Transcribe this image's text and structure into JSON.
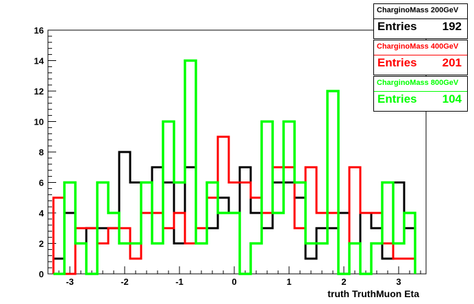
{
  "chart_data": {
    "type": "histogram",
    "title": "",
    "xlabel": "truth TruthMuon Eta",
    "ylabel": "",
    "xlim": [
      -3.4,
      3.5
    ],
    "ylim": [
      0,
      16
    ],
    "bin_edges": [
      -3.3,
      -3.1,
      -2.9,
      -2.7,
      -2.5,
      -2.3,
      -2.1,
      -1.9,
      -1.7,
      -1.5,
      -1.3,
      -1.1,
      -0.9,
      -0.7,
      -0.5,
      -0.3,
      -0.1,
      0.1,
      0.3,
      0.5,
      0.7,
      0.9,
      1.1,
      1.3,
      1.5,
      1.7,
      1.9,
      2.1,
      2.3,
      2.5,
      2.7,
      2.9,
      3.1,
      3.3
    ],
    "xticks": [
      -3,
      -2,
      -1,
      0,
      1,
      2,
      3
    ],
    "xtick_labels": [
      "-3",
      "-2",
      "-1",
      "0",
      "1",
      "2",
      "3"
    ],
    "yticks": [
      0,
      2,
      4,
      6,
      8,
      10,
      12,
      14,
      16
    ],
    "ytick_labels": [
      "0",
      "2",
      "4",
      "6",
      "8",
      "10",
      "12",
      "14",
      "16"
    ],
    "grid": false,
    "legend_position": "top-right",
    "series": [
      {
        "name": "Chargino Mass 200GeV",
        "stats_title": "CharginoMass 200GeV",
        "entries_label": "Entries",
        "entries_value": "192",
        "color": "#000000",
        "values": [
          1,
          4,
          2,
          3,
          3,
          3,
          8,
          6,
          4,
          7,
          6,
          2,
          7,
          2,
          3,
          5,
          4,
          7,
          4,
          3,
          6,
          6,
          5,
          1,
          3,
          3,
          4,
          2,
          4,
          3,
          1,
          6,
          3
        ]
      },
      {
        "name": "Chargino Mass 400GeV",
        "stats_title": "CharginoMass 400GeV",
        "entries_label": "Entries",
        "entries_value": "201",
        "color": "#ff0000",
        "values": [
          5,
          0,
          3,
          3,
          2,
          3,
          3,
          1,
          4,
          4,
          3,
          4,
          2,
          3,
          5,
          9,
          6,
          6,
          5,
          4,
          7,
          7,
          3,
          7,
          4,
          4,
          0,
          7,
          4,
          4,
          2,
          1,
          1
        ]
      },
      {
        "name": "Chargino Mass 800GeV",
        "stats_title": "CharginoMass 800GeV",
        "entries_label": "Entries",
        "entries_value": "104",
        "color": "#00ff00",
        "values": [
          0,
          6,
          2,
          0,
          6,
          4,
          2,
          2,
          6,
          2,
          10,
          6,
          14,
          2,
          6,
          4,
          4,
          0,
          2,
          10,
          4,
          10,
          6,
          2,
          2,
          12,
          0,
          2,
          0,
          2,
          6,
          2,
          4
        ]
      }
    ]
  }
}
